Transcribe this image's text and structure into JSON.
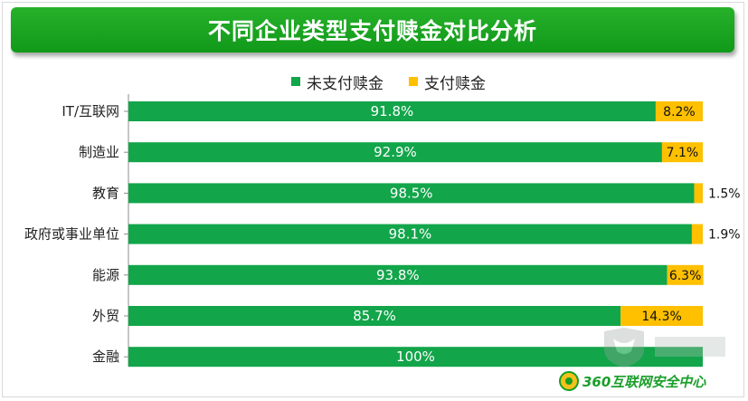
{
  "colors": {
    "unpaid": "#12a54a",
    "paid": "#ffc000",
    "title_bg": "#1aa31f"
  },
  "chart_data": {
    "type": "bar",
    "orientation": "horizontal",
    "stacked": true,
    "title": "不同企业类型支付赎金对比分析",
    "categories": [
      "IT/互联网",
      "制造业",
      "教育",
      "政府或事业单位",
      "能源",
      "外贸",
      "金融"
    ],
    "series": [
      {
        "name": "未支付赎金",
        "color": "#12a54a",
        "values": [
          91.8,
          92.9,
          98.5,
          98.1,
          93.8,
          85.7,
          100
        ],
        "labels": [
          "91.8%",
          "92.9%",
          "98.5%",
          "98.1%",
          "93.8%",
          "85.7%",
          "100%"
        ]
      },
      {
        "name": "支付赎金",
        "color": "#ffc000",
        "values": [
          8.2,
          7.1,
          1.5,
          1.9,
          6.3,
          14.3,
          0
        ],
        "labels": [
          "8.2%",
          "7.1%",
          "1.5%",
          "1.9%",
          "6.3%",
          "14.3%",
          ""
        ]
      }
    ],
    "xlim": [
      0,
      100
    ],
    "grid": false,
    "legend_position": "top"
  },
  "footer": {
    "brand": "360互联网安全中心"
  },
  "watermark_icon": "bull-shield-watermark-icon"
}
